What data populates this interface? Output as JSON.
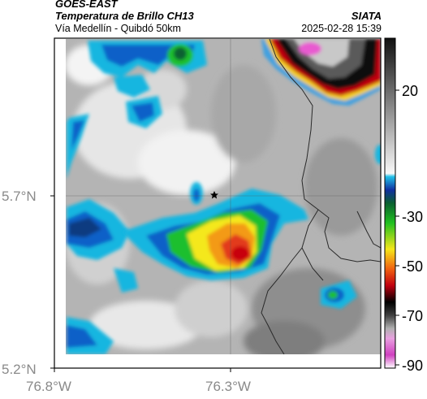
{
  "header": {
    "satellite": "GOES-EAST",
    "product": "Temperatura de Brillo CH13",
    "region": "Vía Medellín - Quibdó 50km",
    "agency": "SIATA",
    "datetime": "2025-02-28 15:39"
  },
  "axes": {
    "y_ticks": [
      {
        "label": "5.7°N",
        "value": 5.7
      },
      {
        "label": "5.2°N",
        "value": 5.2
      }
    ],
    "x_ticks": [
      {
        "label": "76.8°W",
        "value": -76.8
      },
      {
        "label": "76.3°W",
        "value": -76.3
      }
    ]
  },
  "colorbar": {
    "ticks": [
      {
        "label": "20",
        "value": 20
      },
      {
        "label": "-30",
        "value": -30
      },
      {
        "label": "-50",
        "value": -50
      },
      {
        "label": "-70",
        "value": -70
      },
      {
        "label": "-90",
        "value": -90
      }
    ],
    "colors": {
      "cloud_core_red": "#d4141e",
      "cloud_yellow": "#f4e81a",
      "cloud_green": "#1fbf2e",
      "cloud_blue": "#1060c8",
      "cloud_cyan": "#18b6e0",
      "cold_magenta": "#d040c0"
    }
  },
  "map": {
    "marker_icon": "star-icon",
    "features": [
      "brightness-temperature-raster",
      "border-lines",
      "gridlines"
    ]
  }
}
